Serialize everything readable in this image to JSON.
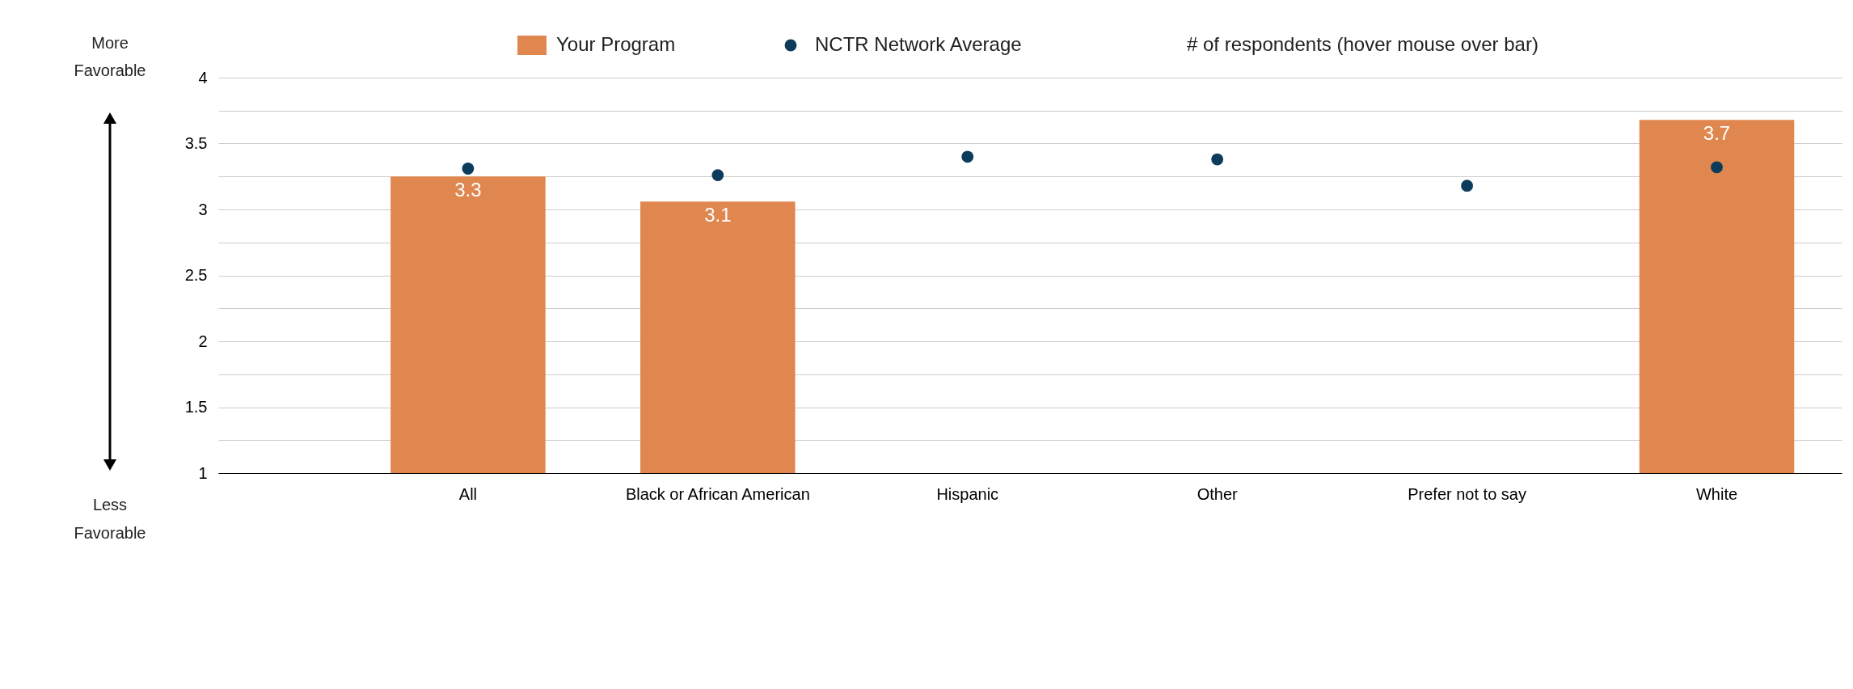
{
  "chart_data": {
    "type": "bar",
    "categories": [
      "All",
      "Black or African American",
      "Hispanic",
      "Other",
      "Prefer not to say",
      "White"
    ],
    "series": [
      {
        "name": "Your Program",
        "color": "#e0874f",
        "values": [
          3.25,
          3.06,
          null,
          null,
          null,
          3.68
        ],
        "value_labels": [
          "3.3",
          "3.1",
          null,
          null,
          null,
          "3.7"
        ]
      },
      {
        "name": "NCTR Network Average",
        "type": "scatter",
        "color": "#0d3b5c",
        "values": [
          3.31,
          3.26,
          3.4,
          3.38,
          3.18,
          3.32
        ]
      },
      {
        "name": "# of respondents (hover mouse over bar)",
        "values": [
          null,
          null,
          null,
          null,
          null,
          null
        ]
      }
    ],
    "ylim": [
      1,
      4
    ],
    "yticks": [
      1,
      {
        "value": 1.25,
        "label": null
      },
      1.5,
      {
        "value": 1.75,
        "label": null
      },
      2,
      {
        "value": 2.25,
        "label": null
      },
      2.5,
      {
        "value": 2.75,
        "label": null
      },
      3,
      {
        "value": 3.25,
        "label": null
      },
      3.5,
      {
        "value": 3.75,
        "label": null
      },
      4
    ],
    "grid": "y",
    "legend": "top",
    "annotations": [
      "More Favorable",
      "Less Favorable"
    ]
  }
}
